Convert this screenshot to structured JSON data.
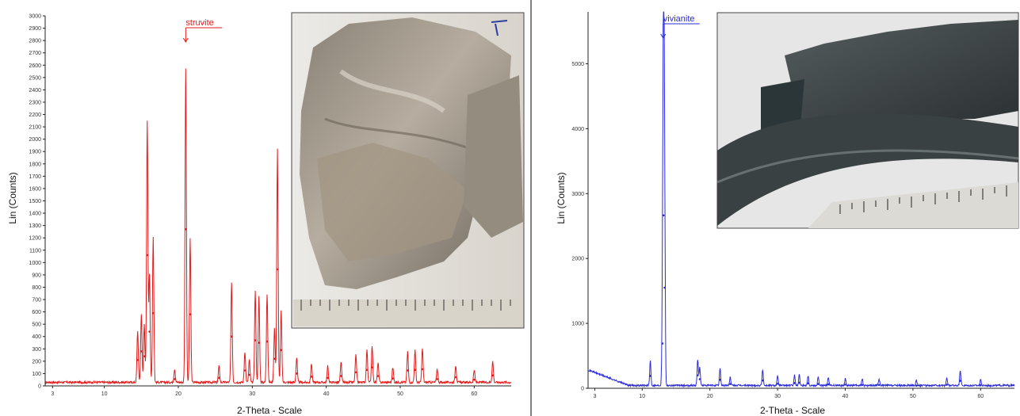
{
  "colors": {
    "left_series": "#e41b1b",
    "right_series": "#2b2bd9",
    "axis": "#222222"
  },
  "chart_data": [
    {
      "type": "line",
      "xlabel": "2-Theta - Scale",
      "ylabel": "Lin (Counts)",
      "xlim": [
        2,
        65
      ],
      "ylim": [
        0,
        3000
      ],
      "xticks": [
        3,
        10,
        20,
        30,
        40,
        50,
        60
      ],
      "yticks": [
        0,
        100,
        200,
        300,
        400,
        500,
        600,
        700,
        800,
        900,
        1000,
        1100,
        1200,
        1300,
        1400,
        1500,
        1600,
        1700,
        1800,
        1900,
        2000,
        2100,
        2200,
        2300,
        2400,
        2500,
        2600,
        2700,
        2800,
        2900,
        3000
      ],
      "annotation": {
        "text": "struvite",
        "x": 21.0
      },
      "baseline": 20,
      "series": [
        {
          "color": "#e41b1b",
          "peaks": [
            {
              "x": 14.5,
              "y": 420
            },
            {
              "x": 15.0,
              "y": 560
            },
            {
              "x": 15.4,
              "y": 480
            },
            {
              "x": 15.8,
              "y": 2120
            },
            {
              "x": 16.1,
              "y": 880
            },
            {
              "x": 16.6,
              "y": 1180
            },
            {
              "x": 19.5,
              "y": 110
            },
            {
              "x": 21.0,
              "y": 2540
            },
            {
              "x": 21.6,
              "y": 1160
            },
            {
              "x": 25.5,
              "y": 130
            },
            {
              "x": 27.2,
              "y": 800
            },
            {
              "x": 29.0,
              "y": 250
            },
            {
              "x": 29.6,
              "y": 180
            },
            {
              "x": 30.4,
              "y": 740
            },
            {
              "x": 30.9,
              "y": 700
            },
            {
              "x": 32.0,
              "y": 720
            },
            {
              "x": 33.0,
              "y": 440
            },
            {
              "x": 33.4,
              "y": 1890
            },
            {
              "x": 33.9,
              "y": 580
            },
            {
              "x": 36.0,
              "y": 200
            },
            {
              "x": 38.0,
              "y": 150
            },
            {
              "x": 40.2,
              "y": 130
            },
            {
              "x": 42.0,
              "y": 160
            },
            {
              "x": 44.0,
              "y": 220
            },
            {
              "x": 45.5,
              "y": 260
            },
            {
              "x": 46.2,
              "y": 300
            },
            {
              "x": 47.0,
              "y": 160
            },
            {
              "x": 49.0,
              "y": 120
            },
            {
              "x": 51.0,
              "y": 250
            },
            {
              "x": 52.0,
              "y": 260
            },
            {
              "x": 53.0,
              "y": 270
            },
            {
              "x": 55.0,
              "y": 110
            },
            {
              "x": 57.5,
              "y": 140
            },
            {
              "x": 60.0,
              "y": 100
            },
            {
              "x": 62.5,
              "y": 170
            }
          ]
        }
      ]
    },
    {
      "type": "line",
      "xlabel": "2-Theta - Scale",
      "ylabel": "Lin (Counts)",
      "xlim": [
        2,
        65
      ],
      "ylim": [
        0,
        5800
      ],
      "xticks": [
        3,
        10,
        20,
        30,
        40,
        50,
        60
      ],
      "yticks": [
        0,
        1000,
        2000,
        3000,
        4000,
        5000
      ],
      "annotation": {
        "text": "vivianite",
        "x": 13.1
      },
      "baseline": 30,
      "series": [
        {
          "color": "#2b2bd9",
          "peaks": [
            {
              "x": 11.2,
              "y": 380
            },
            {
              "x": 13.0,
              "y": 1380
            },
            {
              "x": 13.15,
              "y": 5330
            },
            {
              "x": 13.3,
              "y": 3100
            },
            {
              "x": 18.2,
              "y": 400
            },
            {
              "x": 18.5,
              "y": 280
            },
            {
              "x": 21.5,
              "y": 260
            },
            {
              "x": 23.0,
              "y": 130
            },
            {
              "x": 27.8,
              "y": 240
            },
            {
              "x": 30.0,
              "y": 140
            },
            {
              "x": 32.5,
              "y": 160
            },
            {
              "x": 33.2,
              "y": 170
            },
            {
              "x": 34.5,
              "y": 150
            },
            {
              "x": 36.0,
              "y": 130
            },
            {
              "x": 37.5,
              "y": 120
            },
            {
              "x": 40.0,
              "y": 110
            },
            {
              "x": 42.5,
              "y": 100
            },
            {
              "x": 45.0,
              "y": 100
            },
            {
              "x": 50.5,
              "y": 80
            },
            {
              "x": 55.0,
              "y": 110
            },
            {
              "x": 57.0,
              "y": 230
            },
            {
              "x": 60.0,
              "y": 90
            }
          ]
        }
      ]
    }
  ]
}
